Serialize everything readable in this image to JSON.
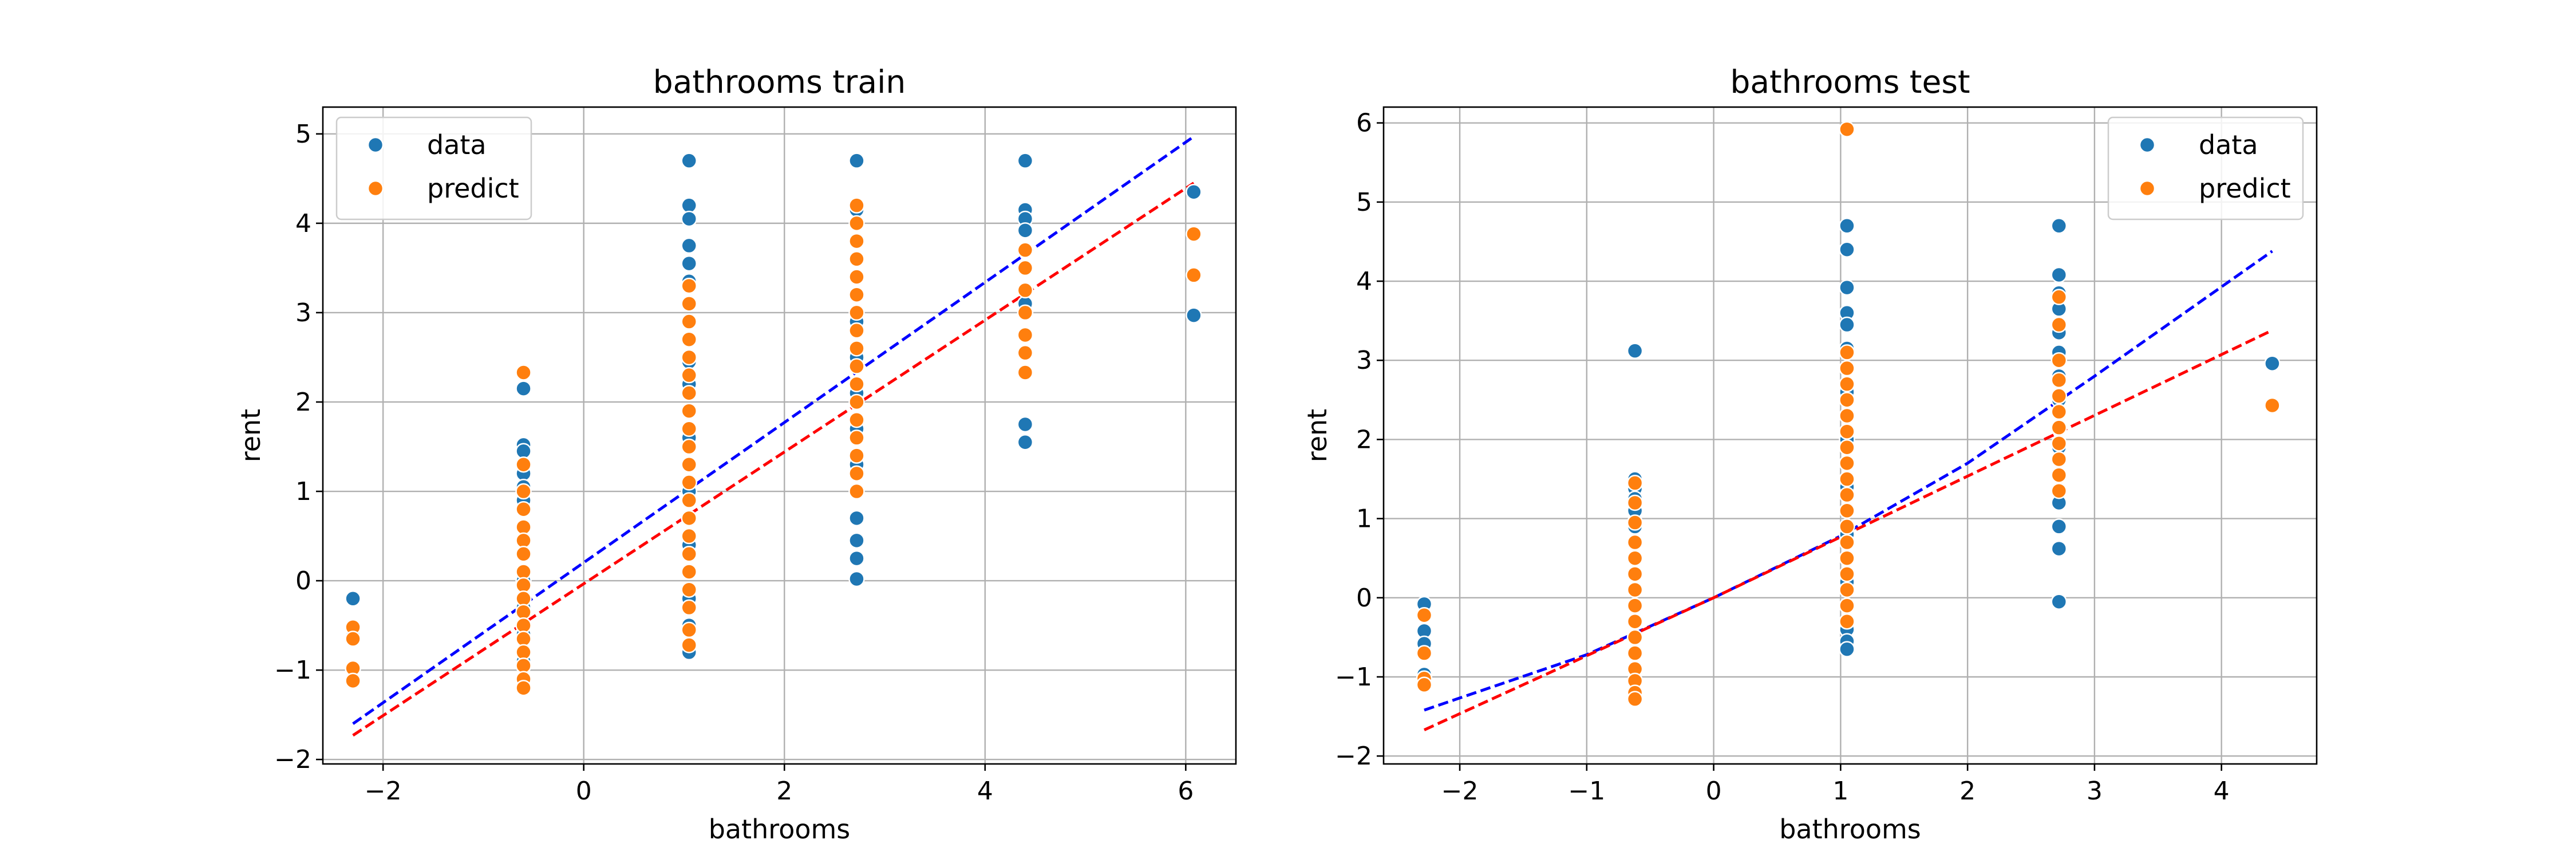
{
  "chart_data": [
    {
      "type": "scatter",
      "title": "bathrooms train",
      "xlabel": "bathrooms",
      "ylabel": "rent",
      "xlim": [
        -2.6,
        6.5
      ],
      "ylim": [
        -2.05,
        5.3
      ],
      "xticks": [
        -2,
        0,
        2,
        4,
        6
      ],
      "yticks": [
        -2,
        -1,
        0,
        1,
        2,
        3,
        4,
        5
      ],
      "grid": true,
      "legend_placement": "top-left",
      "series": [
        {
          "name": "data",
          "color": "#1f77b4",
          "points": [
            [
              -2.3,
              -0.2
            ],
            [
              -2.3,
              -0.55
            ],
            [
              -2.3,
              -0.62
            ],
            [
              -0.6,
              2.15
            ],
            [
              -0.6,
              1.52
            ],
            [
              -0.6,
              1.45
            ],
            [
              -0.6,
              1.2
            ],
            [
              -0.6,
              1.05
            ],
            [
              -0.6,
              0.9
            ],
            [
              -0.6,
              0.6
            ],
            [
              -0.6,
              0.3
            ],
            [
              -0.6,
              0.0
            ],
            [
              -0.6,
              -0.3
            ],
            [
              -0.6,
              -0.6
            ],
            [
              -0.6,
              -0.9
            ],
            [
              -0.6,
              -1.1
            ],
            [
              1.05,
              4.7
            ],
            [
              1.05,
              4.2
            ],
            [
              1.05,
              4.05
            ],
            [
              1.05,
              3.75
            ],
            [
              1.05,
              3.55
            ],
            [
              1.05,
              3.35
            ],
            [
              1.05,
              3.1
            ],
            [
              1.05,
              2.9
            ],
            [
              1.05,
              2.7
            ],
            [
              1.05,
              2.45
            ],
            [
              1.05,
              2.2
            ],
            [
              1.05,
              1.9
            ],
            [
              1.05,
              1.6
            ],
            [
              1.05,
              1.3
            ],
            [
              1.05,
              1.0
            ],
            [
              1.05,
              0.7
            ],
            [
              1.05,
              0.4
            ],
            [
              1.05,
              0.1
            ],
            [
              1.05,
              -0.2
            ],
            [
              1.05,
              -0.5
            ],
            [
              1.05,
              -0.8
            ],
            [
              2.72,
              4.7
            ],
            [
              2.72,
              4.15
            ],
            [
              2.72,
              3.8
            ],
            [
              2.72,
              3.2
            ],
            [
              2.72,
              2.9
            ],
            [
              2.72,
              2.5
            ],
            [
              2.72,
              2.1
            ],
            [
              2.72,
              1.7
            ],
            [
              2.72,
              1.3
            ],
            [
              2.72,
              1.0
            ],
            [
              2.72,
              0.7
            ],
            [
              2.72,
              0.45
            ],
            [
              2.72,
              0.25
            ],
            [
              2.72,
              0.02
            ],
            [
              4.4,
              4.7
            ],
            [
              4.4,
              4.15
            ],
            [
              4.4,
              4.05
            ],
            [
              4.4,
              3.92
            ],
            [
              4.4,
              3.5
            ],
            [
              4.4,
              3.1
            ],
            [
              4.4,
              1.75
            ],
            [
              4.4,
              1.55
            ],
            [
              6.08,
              4.35
            ],
            [
              6.08,
              2.97
            ]
          ]
        },
        {
          "name": "predict",
          "color": "#ff7f0e",
          "points": [
            [
              -2.3,
              -0.52
            ],
            [
              -2.3,
              -0.65
            ],
            [
              -2.3,
              -0.98
            ],
            [
              -2.3,
              -1.12
            ],
            [
              -0.6,
              2.33
            ],
            [
              -0.6,
              1.3
            ],
            [
              -0.6,
              1.0
            ],
            [
              -0.6,
              0.8
            ],
            [
              -0.6,
              0.6
            ],
            [
              -0.6,
              0.45
            ],
            [
              -0.6,
              0.3
            ],
            [
              -0.6,
              0.1
            ],
            [
              -0.6,
              -0.05
            ],
            [
              -0.6,
              -0.2
            ],
            [
              -0.6,
              -0.35
            ],
            [
              -0.6,
              -0.5
            ],
            [
              -0.6,
              -0.65
            ],
            [
              -0.6,
              -0.8
            ],
            [
              -0.6,
              -0.95
            ],
            [
              -0.6,
              -1.1
            ],
            [
              -0.6,
              -1.2
            ],
            [
              1.05,
              3.3
            ],
            [
              1.05,
              3.1
            ],
            [
              1.05,
              2.9
            ],
            [
              1.05,
              2.7
            ],
            [
              1.05,
              2.5
            ],
            [
              1.05,
              2.3
            ],
            [
              1.05,
              2.1
            ],
            [
              1.05,
              1.9
            ],
            [
              1.05,
              1.7
            ],
            [
              1.05,
              1.5
            ],
            [
              1.05,
              1.3
            ],
            [
              1.05,
              1.1
            ],
            [
              1.05,
              0.9
            ],
            [
              1.05,
              0.7
            ],
            [
              1.05,
              0.5
            ],
            [
              1.05,
              0.3
            ],
            [
              1.05,
              0.1
            ],
            [
              1.05,
              -0.1
            ],
            [
              1.05,
              -0.3
            ],
            [
              1.05,
              -0.55
            ],
            [
              1.05,
              -0.72
            ],
            [
              2.72,
              4.2
            ],
            [
              2.72,
              4.0
            ],
            [
              2.72,
              3.8
            ],
            [
              2.72,
              3.6
            ],
            [
              2.72,
              3.4
            ],
            [
              2.72,
              3.2
            ],
            [
              2.72,
              3.0
            ],
            [
              2.72,
              2.8
            ],
            [
              2.72,
              2.6
            ],
            [
              2.72,
              2.4
            ],
            [
              2.72,
              2.2
            ],
            [
              2.72,
              2.0
            ],
            [
              2.72,
              1.8
            ],
            [
              2.72,
              1.6
            ],
            [
              2.72,
              1.4
            ],
            [
              2.72,
              1.2
            ],
            [
              2.72,
              1.0
            ],
            [
              4.4,
              3.7
            ],
            [
              4.4,
              3.5
            ],
            [
              4.4,
              3.25
            ],
            [
              4.4,
              3.0
            ],
            [
              4.4,
              2.75
            ],
            [
              4.4,
              2.55
            ],
            [
              4.4,
              2.33
            ],
            [
              6.08,
              3.88
            ],
            [
              6.08,
              3.42
            ]
          ]
        }
      ],
      "lines": [
        {
          "color": "#0000ff",
          "style": "dashed",
          "points": [
            [
              -2.3,
              -1.6
            ],
            [
              6.08,
              4.97
            ]
          ]
        },
        {
          "color": "#ff0000",
          "style": "dashed",
          "points": [
            [
              -2.3,
              -1.73
            ],
            [
              6.08,
              4.45
            ]
          ]
        }
      ]
    },
    {
      "type": "scatter",
      "title": "bathrooms test",
      "xlabel": "bathrooms",
      "ylabel": "rent",
      "xlim": [
        -2.6,
        4.75
      ],
      "ylim": [
        -2.1,
        6.2
      ],
      "xticks": [
        -2,
        -1,
        0,
        1,
        2,
        3,
        4
      ],
      "yticks": [
        -2,
        -1,
        0,
        1,
        2,
        3,
        4,
        5,
        6
      ],
      "grid": true,
      "legend_placement": "top-right",
      "series": [
        {
          "name": "data",
          "color": "#1f77b4",
          "points": [
            [
              -2.28,
              -0.08
            ],
            [
              -2.28,
              -0.42
            ],
            [
              -2.28,
              -0.58
            ],
            [
              -2.28,
              -0.97
            ],
            [
              -0.62,
              3.12
            ],
            [
              -0.62,
              1.5
            ],
            [
              -0.62,
              1.38
            ],
            [
              -0.62,
              1.25
            ],
            [
              -0.62,
              1.1
            ],
            [
              -0.62,
              0.9
            ],
            [
              -0.62,
              0.7
            ],
            [
              -0.62,
              0.5
            ],
            [
              -0.62,
              0.3
            ],
            [
              -0.62,
              0.1
            ],
            [
              -0.62,
              -0.1
            ],
            [
              -0.62,
              -0.3
            ],
            [
              -0.62,
              -0.5
            ],
            [
              1.05,
              4.7
            ],
            [
              1.05,
              4.4
            ],
            [
              1.05,
              3.92
            ],
            [
              1.05,
              3.6
            ],
            [
              1.05,
              3.45
            ],
            [
              1.05,
              3.15
            ],
            [
              1.05,
              2.9
            ],
            [
              1.05,
              2.6
            ],
            [
              1.05,
              2.3
            ],
            [
              1.05,
              2.0
            ],
            [
              1.05,
              1.7
            ],
            [
              1.05,
              1.4
            ],
            [
              1.05,
              1.1
            ],
            [
              1.05,
              0.8
            ],
            [
              1.05,
              0.5
            ],
            [
              1.05,
              0.2
            ],
            [
              1.05,
              -0.1
            ],
            [
              1.05,
              -0.4
            ],
            [
              1.05,
              -0.55
            ],
            [
              1.05,
              -0.65
            ],
            [
              2.72,
              4.7
            ],
            [
              2.72,
              4.08
            ],
            [
              2.72,
              3.85
            ],
            [
              2.72,
              3.65
            ],
            [
              2.72,
              3.35
            ],
            [
              2.72,
              3.1
            ],
            [
              2.72,
              2.8
            ],
            [
              2.72,
              2.5
            ],
            [
              2.72,
              1.9
            ],
            [
              2.72,
              1.2
            ],
            [
              2.72,
              0.9
            ],
            [
              2.72,
              0.62
            ],
            [
              2.72,
              -0.05
            ],
            [
              4.4,
              2.96
            ]
          ]
        },
        {
          "name": "predict",
          "color": "#ff7f0e",
          "points": [
            [
              -2.28,
              -0.22
            ],
            [
              -2.28,
              -0.7
            ],
            [
              -2.28,
              -1.02
            ],
            [
              -2.28,
              -1.1
            ],
            [
              -0.62,
              1.45
            ],
            [
              -0.62,
              1.2
            ],
            [
              -0.62,
              0.95
            ],
            [
              -0.62,
              0.7
            ],
            [
              -0.62,
              0.5
            ],
            [
              -0.62,
              0.3
            ],
            [
              -0.62,
              0.1
            ],
            [
              -0.62,
              -0.1
            ],
            [
              -0.62,
              -0.3
            ],
            [
              -0.62,
              -0.5
            ],
            [
              -0.62,
              -0.7
            ],
            [
              -0.62,
              -0.9
            ],
            [
              -0.62,
              -1.05
            ],
            [
              -0.62,
              -1.2
            ],
            [
              -0.62,
              -1.28
            ],
            [
              1.05,
              5.92
            ],
            [
              1.05,
              3.1
            ],
            [
              1.05,
              2.9
            ],
            [
              1.05,
              2.7
            ],
            [
              1.05,
              2.5
            ],
            [
              1.05,
              2.3
            ],
            [
              1.05,
              2.1
            ],
            [
              1.05,
              1.9
            ],
            [
              1.05,
              1.7
            ],
            [
              1.05,
              1.5
            ],
            [
              1.05,
              1.3
            ],
            [
              1.05,
              1.1
            ],
            [
              1.05,
              0.9
            ],
            [
              1.05,
              0.7
            ],
            [
              1.05,
              0.5
            ],
            [
              1.05,
              0.3
            ],
            [
              1.05,
              0.1
            ],
            [
              1.05,
              -0.1
            ],
            [
              1.05,
              -0.3
            ],
            [
              2.72,
              3.8
            ],
            [
              2.72,
              3.45
            ],
            [
              2.72,
              3.0
            ],
            [
              2.72,
              2.75
            ],
            [
              2.72,
              2.55
            ],
            [
              2.72,
              2.35
            ],
            [
              2.72,
              2.15
            ],
            [
              2.72,
              1.95
            ],
            [
              2.72,
              1.75
            ],
            [
              2.72,
              1.55
            ],
            [
              2.72,
              1.35
            ],
            [
              4.4,
              2.43
            ]
          ]
        }
      ],
      "lines": [
        {
          "color": "#0000ff",
          "style": "dashed",
          "points": [
            [
              -2.28,
              -1.42
            ],
            [
              -1.0,
              -0.72
            ],
            [
              0.0,
              0.0
            ],
            [
              1.0,
              0.78
            ],
            [
              2.0,
              1.7
            ],
            [
              3.0,
              2.8
            ],
            [
              4.4,
              4.38
            ]
          ]
        },
        {
          "color": "#ff0000",
          "style": "dashed",
          "points": [
            [
              -2.28,
              -1.67
            ],
            [
              0.0,
              0.0
            ],
            [
              4.4,
              3.38
            ]
          ]
        }
      ]
    }
  ]
}
